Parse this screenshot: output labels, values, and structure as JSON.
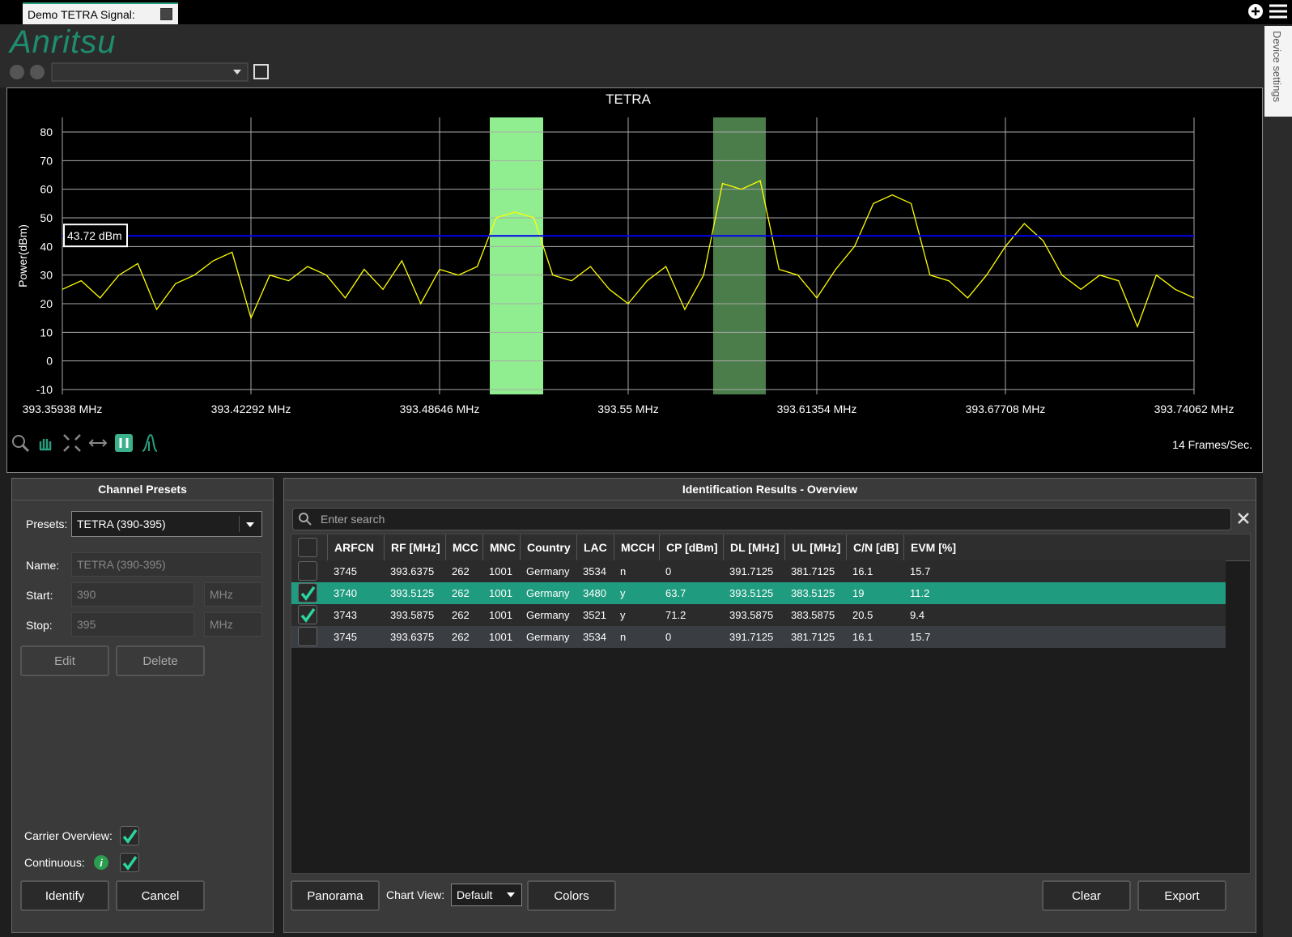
{
  "tab": {
    "title": "Demo TETRA Signal:"
  },
  "header": {
    "logo": "Anritsu",
    "side_tab": "Device settings"
  },
  "chart_data": {
    "type": "line",
    "title": "TETRA",
    "y_label": "Power(dBm)",
    "x": [
      393.35938,
      393.36573,
      393.37209,
      393.37844,
      393.3848,
      393.39115,
      393.3975,
      393.40386,
      393.41021,
      393.41657,
      393.42292,
      393.42927,
      393.43563,
      393.44198,
      393.44834,
      393.45469,
      393.46104,
      393.4674,
      393.47375,
      393.48011,
      393.48646,
      393.49281,
      393.49917,
      393.50552,
      393.51188,
      393.51823,
      393.52458,
      393.53094,
      393.53729,
      393.54365,
      393.55,
      393.55635,
      393.56271,
      393.56906,
      393.57542,
      393.58177,
      393.58812,
      393.59448,
      393.60083,
      393.60719,
      393.61354,
      393.61989,
      393.62625,
      393.6326,
      393.63896,
      393.64531,
      393.65166,
      393.65802,
      393.66437,
      393.67073,
      393.67708,
      393.68343,
      393.68979,
      393.69614,
      393.7025,
      393.70885,
      393.7152,
      393.72156,
      393.72791,
      393.73427,
      393.74062
    ],
    "series": [
      {
        "color": "#ffff00",
        "values": [
          25,
          28,
          22,
          30,
          34,
          18,
          27,
          30,
          35,
          38,
          15,
          30,
          28,
          33,
          30,
          22,
          32,
          25,
          35,
          20,
          32,
          30,
          33,
          50,
          52,
          50,
          30,
          28,
          33,
          25,
          20,
          28,
          33,
          18,
          30,
          62,
          60,
          63,
          32,
          30,
          22,
          32,
          40,
          55,
          58,
          55,
          30,
          28,
          22,
          30,
          40,
          48,
          42,
          30,
          25,
          30,
          28,
          12,
          30,
          25,
          22
        ]
      }
    ],
    "xlim": [
      393.35938,
      393.74062
    ],
    "xticks": [
      {
        "value": 393.35938,
        "label": "393.35938 MHz"
      },
      {
        "value": 393.42292,
        "label": "393.42292 MHz"
      },
      {
        "value": 393.48646,
        "label": "393.48646 MHz"
      },
      {
        "value": 393.55,
        "label": "393.55 MHz"
      },
      {
        "value": 393.61354,
        "label": "393.61354 MHz"
      },
      {
        "value": 393.67708,
        "label": "393.67708 MHz"
      },
      {
        "value": 393.74062,
        "label": "393.74062 MHz"
      }
    ],
    "ylim": [
      -11.7,
      85.1
    ],
    "yticks": [
      -10,
      0,
      10,
      20,
      30,
      40,
      50,
      60,
      70,
      80
    ],
    "grid": true,
    "threshold": {
      "value": 43.72,
      "label": "43.72 dBm",
      "color": "#0000ee"
    },
    "bands": [
      {
        "start": 393.50337,
        "end": 393.52136,
        "color": "#90ee90"
      },
      {
        "start": 393.57863,
        "end": 393.59636,
        "color": "#4a7d4a"
      }
    ]
  },
  "status": {
    "frame_rate": "14 Frames/Sec."
  },
  "presets": {
    "title": "Channel Presets",
    "presets_label": "Presets:",
    "preset": "TETRA (390-395)",
    "name_label": "Name:",
    "name": "TETRA (390-395)",
    "start_label": "Start:",
    "start": "390",
    "start_unit": "MHz",
    "stop_label": "Stop:",
    "stop": "395",
    "stop_unit": "MHz",
    "edit": "Edit",
    "delete": "Delete",
    "carrier_overview": {
      "label": "Carrier Overview:",
      "checked": true
    },
    "continuous": {
      "label": "Continuous:",
      "checked": true
    },
    "identify": "Identify",
    "cancel": "Cancel"
  },
  "results": {
    "title": "Identification Results - Overview",
    "search_placeholder": "Enter search",
    "table": {
      "columns": [
        "ARFCN",
        "RF [MHz]",
        "MCC",
        "MNC",
        "Country",
        "LAC",
        "MCCH",
        "CP [dBm]",
        "DL [MHz]",
        "UL [MHz]",
        "C/N [dB]",
        "EVM [%]"
      ],
      "rows": [
        [
          "3745",
          "393.6375",
          "262",
          "1001",
          "Germany",
          "3534",
          "n",
          "0",
          "391.7125",
          "381.7125",
          "16.1",
          "15.7"
        ],
        [
          "3740",
          "393.5125",
          "262",
          "1001",
          "Germany",
          "3480",
          "y",
          "63.7",
          "393.5125",
          "383.5125",
          "19",
          "11.2"
        ],
        [
          "3743",
          "393.5875",
          "262",
          "1001",
          "Germany",
          "3521",
          "y",
          "71.2",
          "393.5875",
          "383.5875",
          "20.5",
          "9.4"
        ],
        [
          "3745",
          "393.6375",
          "262",
          "1001",
          "Germany",
          "3534",
          "n",
          "0",
          "391.7125",
          "381.7125",
          "16.1",
          "15.7"
        ]
      ],
      "checked": [
        false,
        true,
        true,
        false
      ],
      "selected_row": 1
    },
    "panorama": "Panorama",
    "chart_view_label": "Chart View:",
    "chart_view": "Default",
    "colors": "Colors",
    "clear": "Clear",
    "export": "Export"
  }
}
